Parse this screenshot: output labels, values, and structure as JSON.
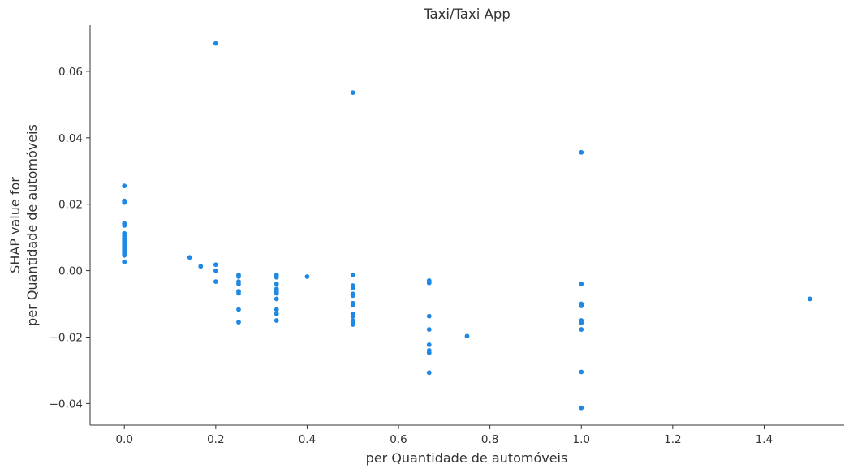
{
  "chart_data": {
    "type": "scatter",
    "title": "Taxi/Taxi App",
    "xlabel": "per Quantidade de automóveis",
    "ylabel_lines": [
      "SHAP value for",
      "per Quantidade de automóveis"
    ],
    "xlim": [
      -0.075,
      1.575
    ],
    "ylim": [
      -0.0465,
      0.0739
    ],
    "xticks": [
      0.0,
      0.2,
      0.4,
      0.6,
      0.8,
      1.0,
      1.2,
      1.4
    ],
    "xtick_labels": [
      "0.0",
      "0.2",
      "0.4",
      "0.6",
      "0.8",
      "1.0",
      "1.2",
      "1.4"
    ],
    "yticks": [
      -0.04,
      -0.02,
      0.0,
      0.02,
      0.04,
      0.06
    ],
    "ytick_labels": [
      "−0.04",
      "−0.02",
      "0.00",
      "0.02",
      "0.04",
      "0.06"
    ],
    "grid": false,
    "marker_color": "#1E88E5",
    "axis_color": "#333333",
    "points": [
      {
        "x": 0.0,
        "y": 0.0255
      },
      {
        "x": 0.0,
        "y": 0.021
      },
      {
        "x": 0.0,
        "y": 0.0205
      },
      {
        "x": 0.0,
        "y": 0.0142
      },
      {
        "x": 0.0,
        "y": 0.0136
      },
      {
        "x": 0.0,
        "y": 0.0112
      },
      {
        "x": 0.0,
        "y": 0.0105
      },
      {
        "x": 0.0,
        "y": 0.0098
      },
      {
        "x": 0.0,
        "y": 0.0092
      },
      {
        "x": 0.0,
        "y": 0.0086
      },
      {
        "x": 0.0,
        "y": 0.008
      },
      {
        "x": 0.0,
        "y": 0.0075
      },
      {
        "x": 0.0,
        "y": 0.007
      },
      {
        "x": 0.0,
        "y": 0.0064
      },
      {
        "x": 0.0,
        "y": 0.0058
      },
      {
        "x": 0.0,
        "y": 0.0052
      },
      {
        "x": 0.0,
        "y": 0.0046
      },
      {
        "x": 0.0,
        "y": 0.0026
      },
      {
        "x": 0.143,
        "y": 0.004
      },
      {
        "x": 0.167,
        "y": 0.0013
      },
      {
        "x": 0.2,
        "y": 0.0684
      },
      {
        "x": 0.2,
        "y": 0.0018
      },
      {
        "x": 0.2,
        "y": 0.0
      },
      {
        "x": 0.2,
        "y": -0.0033
      },
      {
        "x": 0.25,
        "y": -0.0013
      },
      {
        "x": 0.25,
        "y": -0.0018
      },
      {
        "x": 0.25,
        "y": -0.0033
      },
      {
        "x": 0.25,
        "y": -0.004
      },
      {
        "x": 0.25,
        "y": -0.0062
      },
      {
        "x": 0.25,
        "y": -0.0068
      },
      {
        "x": 0.25,
        "y": -0.0117
      },
      {
        "x": 0.25,
        "y": -0.0155
      },
      {
        "x": 0.333,
        "y": -0.0013
      },
      {
        "x": 0.333,
        "y": -0.002
      },
      {
        "x": 0.333,
        "y": -0.004
      },
      {
        "x": 0.333,
        "y": -0.0055
      },
      {
        "x": 0.333,
        "y": -0.0062
      },
      {
        "x": 0.333,
        "y": -0.0068
      },
      {
        "x": 0.333,
        "y": -0.0085
      },
      {
        "x": 0.333,
        "y": -0.0117
      },
      {
        "x": 0.333,
        "y": -0.013
      },
      {
        "x": 0.333,
        "y": -0.015
      },
      {
        "x": 0.4,
        "y": -0.0018
      },
      {
        "x": 0.5,
        "y": 0.0536
      },
      {
        "x": 0.5,
        "y": -0.0013
      },
      {
        "x": 0.5,
        "y": -0.0045
      },
      {
        "x": 0.5,
        "y": -0.0052
      },
      {
        "x": 0.5,
        "y": -0.007
      },
      {
        "x": 0.5,
        "y": -0.0075
      },
      {
        "x": 0.5,
        "y": -0.0098
      },
      {
        "x": 0.5,
        "y": -0.0103
      },
      {
        "x": 0.5,
        "y": -0.013
      },
      {
        "x": 0.5,
        "y": -0.0137
      },
      {
        "x": 0.5,
        "y": -0.015
      },
      {
        "x": 0.5,
        "y": -0.0157
      },
      {
        "x": 0.5,
        "y": -0.0162
      },
      {
        "x": 0.667,
        "y": -0.003
      },
      {
        "x": 0.667,
        "y": -0.0037
      },
      {
        "x": 0.667,
        "y": -0.0137
      },
      {
        "x": 0.667,
        "y": -0.0177
      },
      {
        "x": 0.667,
        "y": -0.0223
      },
      {
        "x": 0.667,
        "y": -0.024
      },
      {
        "x": 0.667,
        "y": -0.0247
      },
      {
        "x": 0.667,
        "y": -0.0307
      },
      {
        "x": 0.75,
        "y": -0.0197
      },
      {
        "x": 1.0,
        "y": 0.0356
      },
      {
        "x": 1.0,
        "y": -0.004
      },
      {
        "x": 1.0,
        "y": -0.01
      },
      {
        "x": 1.0,
        "y": -0.0106
      },
      {
        "x": 1.0,
        "y": -0.015
      },
      {
        "x": 1.0,
        "y": -0.0157
      },
      {
        "x": 1.0,
        "y": -0.0177
      },
      {
        "x": 1.0,
        "y": -0.0305
      },
      {
        "x": 1.0,
        "y": -0.0413
      },
      {
        "x": 1.5,
        "y": -0.0085
      }
    ]
  }
}
